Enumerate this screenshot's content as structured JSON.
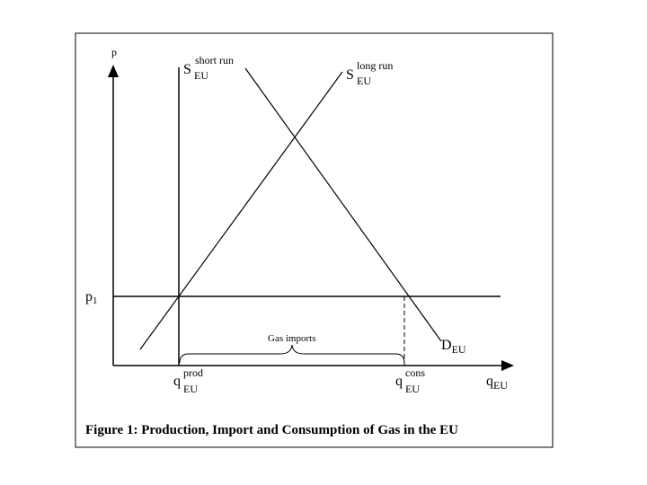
{
  "axes": {
    "y_label": "p",
    "x_label_main": "q",
    "x_label_sub": "EU"
  },
  "curves": {
    "supply_short_run": {
      "main": "S",
      "sub": "EU",
      "sup": "short run"
    },
    "supply_long_run": {
      "main": "S",
      "sub": "EU",
      "sup": "long run"
    },
    "demand": {
      "main": "D",
      "sub": "EU"
    }
  },
  "price_level": {
    "main": "p",
    "sub": "1"
  },
  "quantities": {
    "production": {
      "main": "q",
      "sub": "EU",
      "sup": "prod"
    },
    "consumption": {
      "main": "q",
      "sub": "EU",
      "sup": "cons"
    }
  },
  "imports_label": "Gas imports",
  "caption": "Figure 1: Production, Import and Consumption of Gas in the EU",
  "colors": {
    "line": "#000000",
    "background": "#ffffff"
  }
}
